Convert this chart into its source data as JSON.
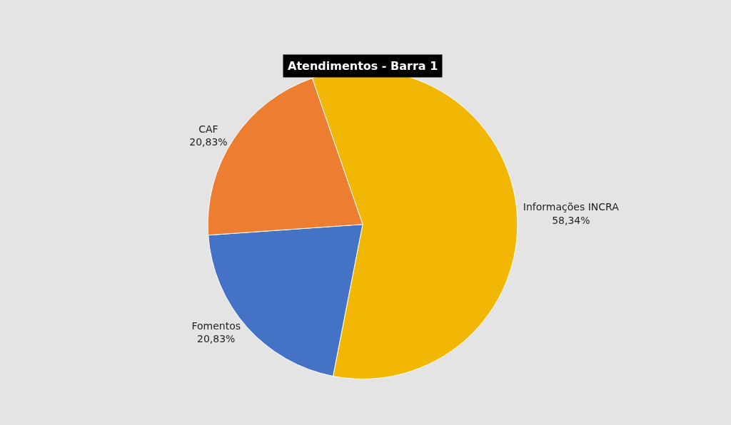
{
  "chart_data": {
    "type": "pie",
    "title": "Atendimentos - Barra 1",
    "categories": [
      "Informações INCRA",
      "Fomentos",
      "CAF"
    ],
    "values": [
      58.34,
      20.83,
      20.83
    ],
    "value_labels": [
      "58,34%",
      "20,83%",
      "20,83%"
    ],
    "colors": [
      "#f2b705",
      "#4472c4",
      "#ed7d31"
    ],
    "legend": false
  }
}
